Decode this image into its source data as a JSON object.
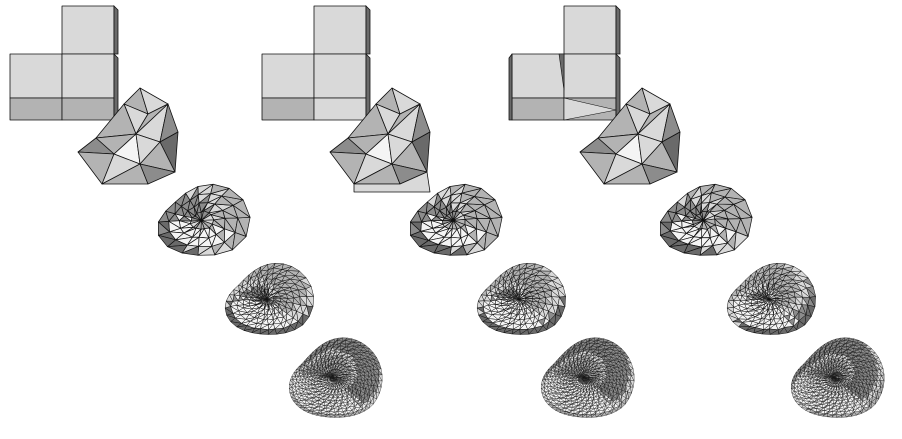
{
  "figure": {
    "description_free": true,
    "columns": [
      {
        "id": "col-1",
        "stages": [
          "cube-base",
          "subdivision-1",
          "subdivision-2",
          "subdivision-3",
          "subdivision-4"
        ]
      },
      {
        "id": "col-2",
        "stages": [
          "cube-base",
          "subdivision-1",
          "subdivision-2",
          "subdivision-3",
          "subdivision-4"
        ]
      },
      {
        "id": "col-3",
        "stages": [
          "cube-base",
          "subdivision-1",
          "subdivision-2",
          "subdivision-3",
          "subdivision-4"
        ]
      }
    ],
    "colors": {
      "background": "#ffffff",
      "face_light": "#d9d9d9",
      "face_mid": "#b3b3b3",
      "face_dark": "#8c8c8c",
      "face_darker": "#6a6a6a",
      "face_white": "#f4f4f4",
      "edge": "#111111"
    }
  }
}
